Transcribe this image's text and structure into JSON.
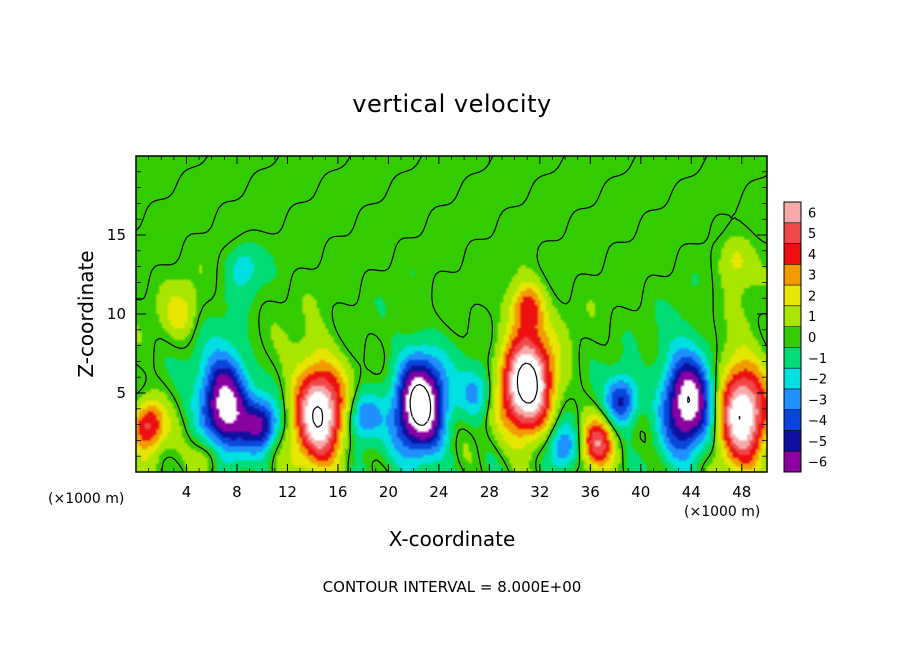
{
  "chart_data": {
    "type": "heatmap",
    "title": "vertical velocity",
    "xlabel": "X-coordinate",
    "ylabel": "Z-coordinate",
    "x_unit_left": "(×1000 m)",
    "x_unit_right": "(×1000 m)",
    "xlim": [
      0,
      50
    ],
    "ylim": [
      0,
      20
    ],
    "x_ticks": [
      4,
      8,
      12,
      16,
      20,
      24,
      28,
      32,
      36,
      40,
      44,
      48
    ],
    "y_ticks": [
      5,
      10,
      15
    ],
    "colorbar": {
      "levels": [
        6,
        5,
        4,
        3,
        2,
        1,
        0,
        -1,
        -2,
        -3,
        -4,
        -5,
        -6
      ],
      "colors": [
        "#f7a8a8",
        "#f04848",
        "#ee1010",
        "#f29a00",
        "#e6e600",
        "#a8e600",
        "#33cc00",
        "#00dd77",
        "#00e0e0",
        "#1e90ff",
        "#0a46dc",
        "#1010a0",
        "#8a00a0"
      ]
    },
    "contour_interval": "CONTOUR INTERVAL = 8.000E+00",
    "features": [
      {
        "kind": "updraft",
        "x": 1.0,
        "z": 3.0,
        "peak": 5
      },
      {
        "kind": "updraft",
        "x": 14.5,
        "z": 3.8,
        "peak": 8
      },
      {
        "kind": "updraft",
        "x": 31.0,
        "z": 5.5,
        "peak": 9
      },
      {
        "kind": "updraft",
        "x": 36.5,
        "z": 1.8,
        "peak": 5
      },
      {
        "kind": "updraft",
        "x": 48.0,
        "z": 3.8,
        "peak": 8
      },
      {
        "kind": "updraft",
        "x": 5.8,
        "z": 1.0,
        "peak": 3
      },
      {
        "kind": "downdraft",
        "x": 7.0,
        "z": 4.2,
        "peak": -8
      },
      {
        "kind": "downdraft",
        "x": 10.0,
        "z": 3.0,
        "peak": -5
      },
      {
        "kind": "downdraft",
        "x": 22.5,
        "z": 4.2,
        "peak": -9
      },
      {
        "kind": "downdraft",
        "x": 18.0,
        "z": 3.5,
        "peak": -4
      },
      {
        "kind": "downdraft",
        "x": 38.5,
        "z": 4.5,
        "peak": -5
      },
      {
        "kind": "downdraft",
        "x": 43.7,
        "z": 4.5,
        "peak": -8
      },
      {
        "kind": "downdraft",
        "x": 33.8,
        "z": 1.5,
        "peak": -4
      },
      {
        "kind": "downdraft",
        "x": 8.5,
        "z": 13.0,
        "peak": -2
      },
      {
        "kind": "downdraft",
        "x": 27.0,
        "z": 5.0,
        "peak": -3
      },
      {
        "kind": "updraft",
        "x": 3.5,
        "z": 10.0,
        "peak": 2
      },
      {
        "kind": "updraft",
        "x": 47.5,
        "z": 13.5,
        "peak": 2
      },
      {
        "kind": "updraft",
        "x": 31.0,
        "z": 10.5,
        "peak": 4
      }
    ]
  }
}
